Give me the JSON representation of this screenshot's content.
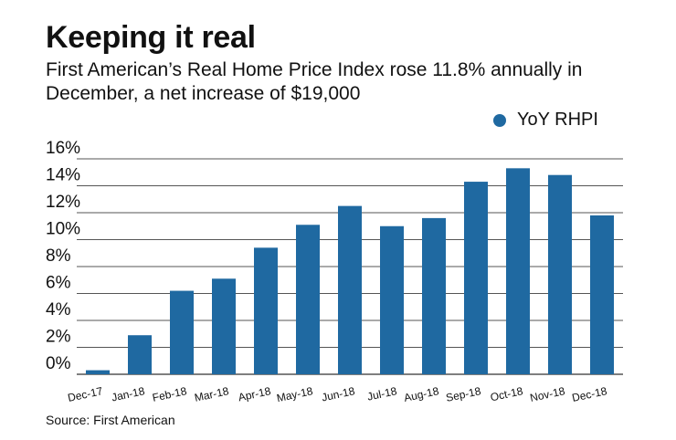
{
  "title": "Keeping it real",
  "subtitle": "First American’s Real Home Price Index rose 11.8% annually in December, a net increase of $19,000",
  "source": "Source: First American",
  "colors": {
    "bar": "#1f69a1",
    "grid": "#555555"
  },
  "chart_data": {
    "type": "bar",
    "title": "Keeping it real",
    "xlabel": "",
    "ylabel": "",
    "ylim": [
      0,
      16
    ],
    "yticks": [
      "0%",
      "2%",
      "4%",
      "6%",
      "8%",
      "10%",
      "12%",
      "14%",
      "16%"
    ],
    "legend": "top-right",
    "grid": true,
    "series": [
      {
        "name": "YoY RHPI",
        "values": [
          0.3,
          2.9,
          6.2,
          7.1,
          9.4,
          11.1,
          12.5,
          11.0,
          11.6,
          14.3,
          15.3,
          14.8,
          11.8
        ]
      }
    ],
    "categories": [
      "Dec-17",
      "Jan-18",
      "Feb-18",
      "Mar-18",
      "Apr-18",
      "May-18",
      "Jun-18",
      "Jul-18",
      "Aug-18",
      "Sep-18",
      "Oct-18",
      "Nov-18",
      "Dec-18"
    ]
  }
}
